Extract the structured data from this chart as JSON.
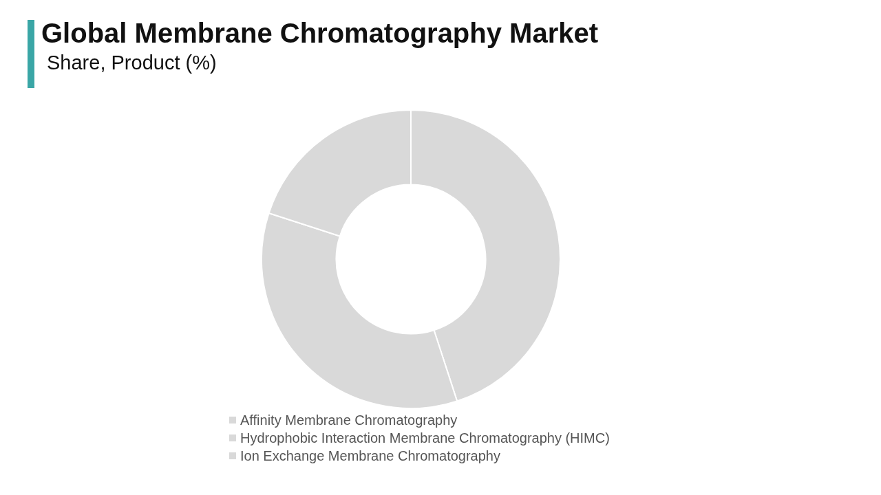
{
  "chart_data": {
    "type": "donut",
    "title": "Global Membrane Chromatography Market",
    "subtitle": "Share, Product (%)",
    "categories": [
      "Affinity Membrane Chromatography",
      "Hydrophobic Interaction Membrane Chromatography (HIMC)",
      "Ion Exchange Membrane Chromatography"
    ],
    "values": [
      45,
      35,
      20
    ],
    "colors": [
      "#d9d9d9",
      "#d9d9d9",
      "#d9d9d9"
    ],
    "legend": "bottom"
  }
}
